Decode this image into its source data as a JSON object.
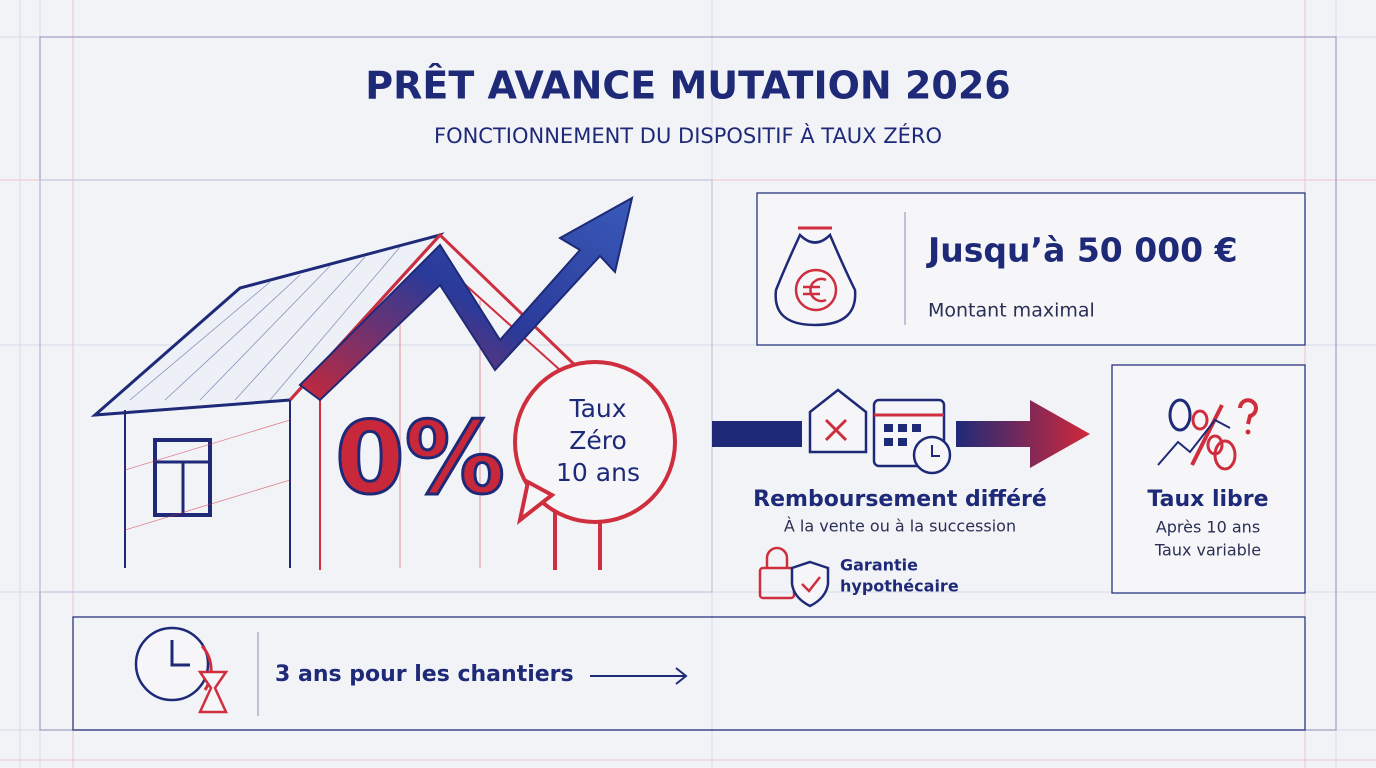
{
  "header": {
    "title": "PRÊT AVANCE MUTATION 2026",
    "subtitle": "FONCTIONNEMENT DU DISPOSITIF À TAUX ZÉRO"
  },
  "house": {
    "badge": "0%",
    "bubble": [
      "Taux",
      "Zéro",
      "10 ans"
    ]
  },
  "amount_card": {
    "title": "Jusqu’à 50 000 €",
    "caption": "Montant maximal"
  },
  "repayment": {
    "title": "Remboursement différé",
    "caption": "À la vente ou à la succession"
  },
  "guarantee": {
    "lines": [
      "Garantie",
      "hypothécaire"
    ]
  },
  "rate_card": {
    "title": "Taux libre",
    "lines": [
      "Après 10 ans",
      "Taux variable"
    ]
  },
  "timeline": {
    "text": "3 ans pour les chantiers"
  }
}
